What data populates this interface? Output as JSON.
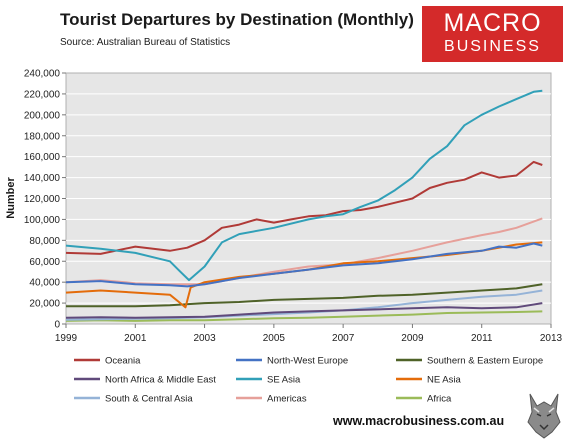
{
  "header": {
    "title": "Tourist Departures by Destination (Monthly)",
    "subtitle": "Source: Australian Bureau of Statistics",
    "logo_line1": "MACRO",
    "logo_line2": "BUSINESS",
    "footer_url": "www.macrobusiness.com.au"
  },
  "chart_data": {
    "type": "line",
    "title": "Tourist Departures by Destination (Monthly)",
    "ylabel": "Number",
    "xlabel": "",
    "xlim": [
      1999,
      2013
    ],
    "ylim": [
      0,
      240000
    ],
    "x_ticks": [
      "1999",
      "2001",
      "2003",
      "2005",
      "2007",
      "2009",
      "2011",
      "2013"
    ],
    "y_ticks": [
      "0",
      "20,000",
      "40,000",
      "60,000",
      "80,000",
      "100,000",
      "120,000",
      "140,000",
      "160,000",
      "180,000",
      "200,000",
      "220,000",
      "240,000"
    ],
    "legend_position": "bottom",
    "series": [
      {
        "name": "Oceania",
        "color": "#b03a37",
        "points": [
          [
            1999,
            68000
          ],
          [
            2000,
            67000
          ],
          [
            2001,
            74000
          ],
          [
            2002,
            70000
          ],
          [
            2002.5,
            73000
          ],
          [
            2003,
            80000
          ],
          [
            2003.5,
            92000
          ],
          [
            2004,
            95000
          ],
          [
            2004.5,
            100000
          ],
          [
            2005,
            97000
          ],
          [
            2005.5,
            100000
          ],
          [
            2006,
            103000
          ],
          [
            2006.5,
            104000
          ],
          [
            2007,
            108000
          ],
          [
            2007.5,
            109000
          ],
          [
            2008,
            112000
          ],
          [
            2008.5,
            116000
          ],
          [
            2009,
            120000
          ],
          [
            2009.5,
            130000
          ],
          [
            2010,
            135000
          ],
          [
            2010.5,
            138000
          ],
          [
            2011,
            145000
          ],
          [
            2011.5,
            140000
          ],
          [
            2012,
            142000
          ],
          [
            2012.5,
            155000
          ],
          [
            2012.75,
            152000
          ]
        ]
      },
      {
        "name": "North-West Europe",
        "color": "#4472c4",
        "points": [
          [
            1999,
            40000
          ],
          [
            2000,
            41000
          ],
          [
            2001,
            38000
          ],
          [
            2002,
            37000
          ],
          [
            2002.5,
            36000
          ],
          [
            2003,
            38000
          ],
          [
            2004,
            44000
          ],
          [
            2005,
            48000
          ],
          [
            2006,
            52000
          ],
          [
            2007,
            56000
          ],
          [
            2008,
            58000
          ],
          [
            2008.5,
            60000
          ],
          [
            2009,
            62000
          ],
          [
            2010,
            67000
          ],
          [
            2011,
            70000
          ],
          [
            2011.5,
            74000
          ],
          [
            2012,
            73000
          ],
          [
            2012.5,
            77000
          ],
          [
            2012.75,
            75000
          ]
        ]
      },
      {
        "name": "Southern & Eastern Europe",
        "color": "#4f6228",
        "points": [
          [
            1999,
            17000
          ],
          [
            2000,
            17000
          ],
          [
            2001,
            17000
          ],
          [
            2002,
            18000
          ],
          [
            2003,
            20000
          ],
          [
            2004,
            21000
          ],
          [
            2005,
            23000
          ],
          [
            2006,
            24000
          ],
          [
            2007,
            25000
          ],
          [
            2008,
            27000
          ],
          [
            2009,
            28000
          ],
          [
            2010,
            30000
          ],
          [
            2011,
            32000
          ],
          [
            2012,
            34000
          ],
          [
            2012.75,
            38000
          ]
        ]
      },
      {
        "name": "North Africa & Middle East",
        "color": "#604a7b",
        "points": [
          [
            1999,
            6000
          ],
          [
            2000,
            6500
          ],
          [
            2001,
            6000
          ],
          [
            2002,
            6500
          ],
          [
            2003,
            7000
          ],
          [
            2004,
            9000
          ],
          [
            2005,
            11000
          ],
          [
            2006,
            12000
          ],
          [
            2007,
            13000
          ],
          [
            2008,
            14000
          ],
          [
            2009,
            15000
          ],
          [
            2010,
            16000
          ],
          [
            2011,
            15000
          ],
          [
            2012,
            16000
          ],
          [
            2012.75,
            20000
          ]
        ]
      },
      {
        "name": "SE Asia",
        "color": "#31a0b8",
        "points": [
          [
            1999,
            75000
          ],
          [
            2000,
            72000
          ],
          [
            2001,
            68000
          ],
          [
            2002,
            60000
          ],
          [
            2002.3,
            50000
          ],
          [
            2002.55,
            42000
          ],
          [
            2003,
            55000
          ],
          [
            2003.5,
            78000
          ],
          [
            2004,
            86000
          ],
          [
            2005,
            92000
          ],
          [
            2006,
            100000
          ],
          [
            2006.5,
            103000
          ],
          [
            2007,
            105000
          ],
          [
            2007.5,
            112000
          ],
          [
            2008,
            118000
          ],
          [
            2008.5,
            128000
          ],
          [
            2009,
            140000
          ],
          [
            2009.5,
            158000
          ],
          [
            2010,
            170000
          ],
          [
            2010.5,
            190000
          ],
          [
            2011,
            200000
          ],
          [
            2011.5,
            208000
          ],
          [
            2012,
            215000
          ],
          [
            2012.5,
            222000
          ],
          [
            2012.75,
            223000
          ]
        ]
      },
      {
        "name": "NE Asia",
        "color": "#e46c0a",
        "points": [
          [
            1999,
            30000
          ],
          [
            2000,
            32000
          ],
          [
            2001,
            30000
          ],
          [
            2002,
            28000
          ],
          [
            2002.3,
            20000
          ],
          [
            2002.45,
            16000
          ],
          [
            2002.6,
            35000
          ],
          [
            2003,
            40000
          ],
          [
            2004,
            45000
          ],
          [
            2005,
            48000
          ],
          [
            2006,
            52000
          ],
          [
            2007,
            58000
          ],
          [
            2008,
            60000
          ],
          [
            2009,
            63000
          ],
          [
            2010,
            66000
          ],
          [
            2011,
            70000
          ],
          [
            2012,
            76000
          ],
          [
            2012.75,
            78000
          ]
        ]
      },
      {
        "name": "South & Central Asia",
        "color": "#95b3d7",
        "points": [
          [
            1999,
            4000
          ],
          [
            2000,
            4500
          ],
          [
            2001,
            5000
          ],
          [
            2002,
            5500
          ],
          [
            2003,
            6500
          ],
          [
            2004,
            8000
          ],
          [
            2005,
            9500
          ],
          [
            2006,
            11000
          ],
          [
            2007,
            13000
          ],
          [
            2008,
            16000
          ],
          [
            2009,
            20000
          ],
          [
            2010,
            23000
          ],
          [
            2011,
            26000
          ],
          [
            2012,
            28000
          ],
          [
            2012.75,
            32000
          ]
        ]
      },
      {
        "name": "Americas",
        "color": "#e6a09a",
        "points": [
          [
            1999,
            40000
          ],
          [
            2000,
            42000
          ],
          [
            2001,
            39000
          ],
          [
            2002,
            38000
          ],
          [
            2003,
            38000
          ],
          [
            2004,
            44000
          ],
          [
            2005,
            50000
          ],
          [
            2006,
            55000
          ],
          [
            2007,
            57000
          ],
          [
            2008,
            63000
          ],
          [
            2009,
            70000
          ],
          [
            2010,
            78000
          ],
          [
            2011,
            85000
          ],
          [
            2011.5,
            88000
          ],
          [
            2012,
            92000
          ],
          [
            2012.75,
            101000
          ]
        ]
      },
      {
        "name": "Africa",
        "color": "#9bbb59",
        "points": [
          [
            1999,
            3000
          ],
          [
            2000,
            3500
          ],
          [
            2001,
            3000
          ],
          [
            2002,
            3500
          ],
          [
            2003,
            3500
          ],
          [
            2004,
            4500
          ],
          [
            2005,
            5500
          ],
          [
            2006,
            6000
          ],
          [
            2007,
            7000
          ],
          [
            2008,
            8000
          ],
          [
            2009,
            9000
          ],
          [
            2010,
            10500
          ],
          [
            2011,
            11000
          ],
          [
            2012,
            11500
          ],
          [
            2012.75,
            12000
          ]
        ]
      }
    ]
  }
}
